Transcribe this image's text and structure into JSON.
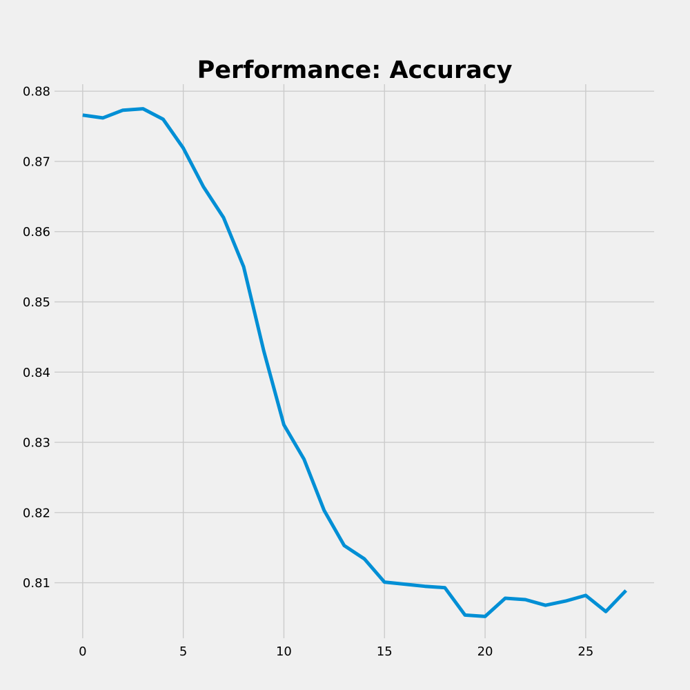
{
  "chart_data": {
    "type": "line",
    "title": "Performance: Accuracy",
    "xlabel": "",
    "ylabel": "",
    "xlim": [
      -1.4,
      28.4
    ],
    "ylim": [
      0.8021,
      0.881
    ],
    "xticks": [
      0,
      5,
      10,
      15,
      20,
      25
    ],
    "yticks": [
      0.81,
      0.82,
      0.83,
      0.84,
      0.85,
      0.86,
      0.87,
      0.88
    ],
    "grid": true,
    "legend": "none",
    "colors": {
      "background": "#f0f0f0",
      "line": "#008fd5",
      "grid": "#cbcbcb"
    },
    "series": [
      {
        "x": [
          0,
          1,
          2,
          3,
          4,
          5,
          6,
          7,
          8,
          9,
          10,
          11,
          12,
          13,
          14,
          15,
          16,
          17,
          18,
          19,
          20,
          21,
          22,
          23,
          24,
          25,
          26,
          27
        ],
        "values": [
          0.8766,
          0.8762,
          0.8773,
          0.8775,
          0.876,
          0.8719,
          0.8664,
          0.862,
          0.855,
          0.843,
          0.8325,
          0.8276,
          0.8203,
          0.8153,
          0.8134,
          0.8101,
          0.8098,
          0.8095,
          0.8093,
          0.8054,
          0.8052,
          0.8078,
          0.8076,
          0.8068,
          0.8074,
          0.8082,
          0.8059,
          0.8089
        ]
      }
    ]
  }
}
